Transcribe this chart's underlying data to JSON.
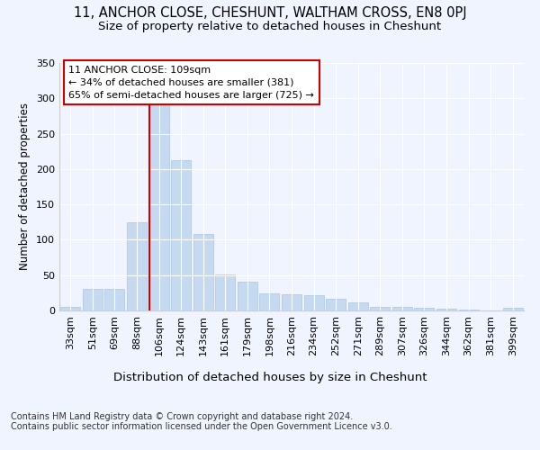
{
  "title1": "11, ANCHOR CLOSE, CHESHUNT, WALTHAM CROSS, EN8 0PJ",
  "title2": "Size of property relative to detached houses in Cheshunt",
  "xlabel": "Distribution of detached houses by size in Cheshunt",
  "ylabel": "Number of detached properties",
  "categories": [
    "33sqm",
    "51sqm",
    "69sqm",
    "88sqm",
    "106sqm",
    "124sqm",
    "143sqm",
    "161sqm",
    "179sqm",
    "198sqm",
    "216sqm",
    "234sqm",
    "252sqm",
    "271sqm",
    "289sqm",
    "307sqm",
    "326sqm",
    "344sqm",
    "362sqm",
    "381sqm",
    "399sqm"
  ],
  "values": [
    5,
    30,
    30,
    125,
    295,
    213,
    108,
    51,
    41,
    24,
    23,
    22,
    16,
    11,
    5,
    5,
    4,
    3,
    1,
    0,
    4
  ],
  "bar_color": "#c5d9f0",
  "bar_edge_color": "#aac4e0",
  "vline_x_index": 4,
  "vline_color": "#cc0000",
  "annotation_text": "11 ANCHOR CLOSE: 109sqm\n← 34% of detached houses are smaller (381)\n65% of semi-detached houses are larger (725) →",
  "box_color": "#cc0000",
  "footnote": "Contains HM Land Registry data © Crown copyright and database right 2024.\nContains public sector information licensed under the Open Government Licence v3.0.",
  "bg_color": "#f0f4ff",
  "grid_color": "#ffffff",
  "ylim": [
    0,
    350
  ],
  "yticks": [
    0,
    50,
    100,
    150,
    200,
    250,
    300,
    350
  ],
  "title1_fontsize": 10.5,
  "title2_fontsize": 9.5,
  "xlabel_fontsize": 9.5,
  "ylabel_fontsize": 8.5,
  "tick_fontsize": 8,
  "annot_fontsize": 8,
  "footnote_fontsize": 7
}
